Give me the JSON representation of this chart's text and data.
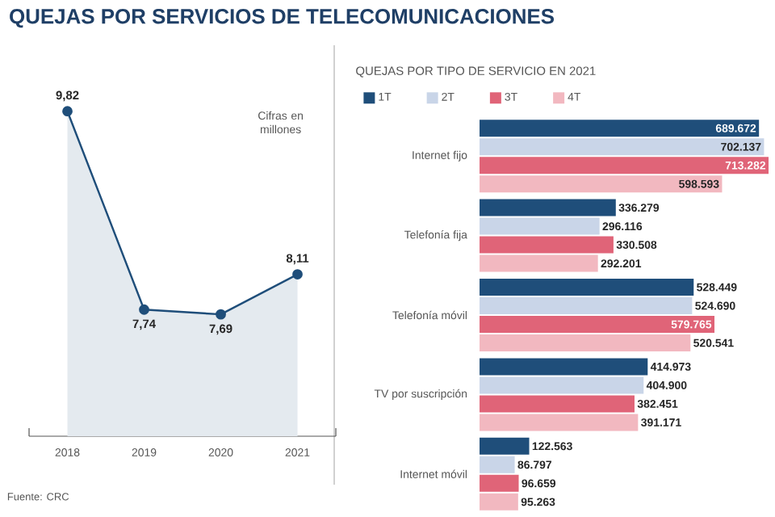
{
  "chart_data": [
    {
      "type": "area",
      "title": "QUEJAS POR SERVICIOS DE TELECOMUNICACIONES",
      "categories": [
        "2018",
        "2019",
        "2020",
        "2021"
      ],
      "values": [
        9.82,
        7.74,
        7.69,
        8.11
      ],
      "value_labels": [
        "9,82",
        "7,74",
        "7,69",
        "8,11"
      ],
      "color": "#1f4e7a",
      "marker": "circle",
      "annotations": [
        "Cifras en millones",
        "Fuente: CRC"
      ]
    },
    {
      "type": "bar",
      "orientation": "horizontal",
      "title": "QUEJAS POR TIPO DE SERVICIO EN 2021",
      "categories": [
        "Internet fijo",
        "Telefonía fija",
        "Telefonía móvil",
        "TV por suscripción",
        "Internet móvil"
      ],
      "legend": "top left",
      "series": [
        {
          "name": "1T",
          "color": "#1f4e7a",
          "values": [
            689672,
            336279,
            528449,
            414973,
            122563
          ],
          "value_labels": [
            "689.672",
            "336.279",
            "528.449",
            "414.973",
            "122.563"
          ]
        },
        {
          "name": "2T",
          "color": "#c9d5e8",
          "values": [
            702137,
            296116,
            524690,
            404900,
            86797
          ],
          "value_labels": [
            "702.137",
            "296.116",
            "524.690",
            "404.900",
            "86.797"
          ]
        },
        {
          "name": "3T",
          "color": "#e06478",
          "values": [
            713282,
            330508,
            579765,
            382451,
            96659
          ],
          "value_labels": [
            "713.282",
            "330.508",
            "579.765",
            "382.451",
            "96.659"
          ]
        },
        {
          "name": "4T",
          "color": "#f2b8c0",
          "values": [
            598593,
            292201,
            520541,
            391171,
            95263
          ],
          "value_labels": [
            "598.593",
            "292.201",
            "520.541",
            "391.171",
            "95.263"
          ]
        }
      ]
    }
  ]
}
